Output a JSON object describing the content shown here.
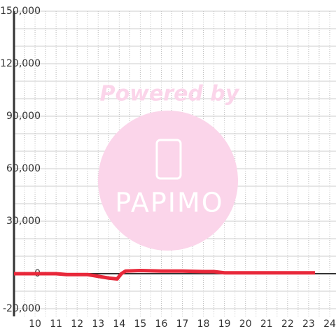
{
  "chart_data": {
    "type": "line",
    "watermark": {
      "text": "Powered by",
      "logo": "PAPIMO"
    },
    "x": [
      9,
      10,
      11,
      11.5,
      12,
      12.5,
      13,
      13.5,
      13.9,
      14.1,
      14.3,
      15,
      16,
      17,
      18,
      18.5,
      19,
      20,
      21,
      22,
      23,
      23.3
    ],
    "series": [
      {
        "color": "#e8283a",
        "values": [
          0,
          0,
          0,
          -500,
          -500,
          -500,
          -1500,
          -2500,
          -3000,
          0,
          1500,
          1800,
          1500,
          1500,
          1200,
          1200,
          500,
          500,
          500,
          500,
          500,
          500
        ]
      }
    ],
    "xlim": [
      9,
      24.3
    ],
    "xticks": [
      10,
      11,
      12,
      13,
      14,
      15,
      16,
      17,
      18,
      19,
      20,
      21,
      22,
      23,
      24
    ],
    "xgrid": [
      9.5,
      10,
      10.5,
      11,
      11.5,
      12,
      12.5,
      13,
      13.5,
      14,
      14.5,
      15,
      15.5,
      16,
      16.5,
      17,
      17.5,
      18,
      18.5,
      19,
      19.5,
      20,
      20.5,
      21,
      21.5,
      22,
      22.5,
      23,
      23.5,
      24
    ],
    "ylim": [
      -20000,
      150000
    ],
    "yticks": [
      {
        "value": 150000,
        "label": "150,000"
      },
      {
        "value": 120000,
        "label": "120,000"
      },
      {
        "value": 90000,
        "label": "90,000"
      },
      {
        "value": 60000,
        "label": "60,000"
      },
      {
        "value": 30000,
        "label": "30,000"
      },
      0,
      {
        "value": -20000,
        "label": "-20,000"
      }
    ],
    "ygrid": [
      -10000,
      10000,
      20000,
      40000,
      50000,
      70000,
      80000,
      100000,
      110000,
      130000,
      140000
    ],
    "grid": true
  }
}
